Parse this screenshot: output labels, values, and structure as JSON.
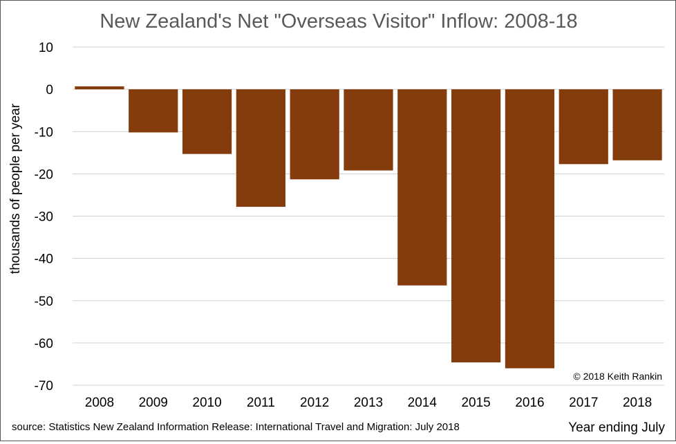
{
  "chart_data": {
    "type": "bar",
    "title": "New Zealand's Net \"Overseas Visitor\" Inflow: 2008-18",
    "ylabel": "thousands of people per year",
    "xlabel": "Year ending  July",
    "source": "source:  Statistics New Zealand Information  Release: International  Travel and Migration: July  2018",
    "annotation": "© 2018 Keith Rankin",
    "categories": [
      "2008",
      "2009",
      "2010",
      "2011",
      "2012",
      "2013",
      "2014",
      "2015",
      "2016",
      "2017",
      "2018"
    ],
    "values": [
      0.7,
      -10.2,
      -15.3,
      -27.8,
      -21.3,
      -19.2,
      -46.4,
      -64.6,
      -66.0,
      -17.7,
      -16.8
    ],
    "ylim": [
      -70,
      10
    ],
    "yticks": [
      "10",
      "0",
      "-10",
      "-20",
      "-30",
      "-40",
      "-50",
      "-60",
      "-70"
    ],
    "grid": true,
    "legend": "none",
    "bar_color": "#843C0C"
  }
}
